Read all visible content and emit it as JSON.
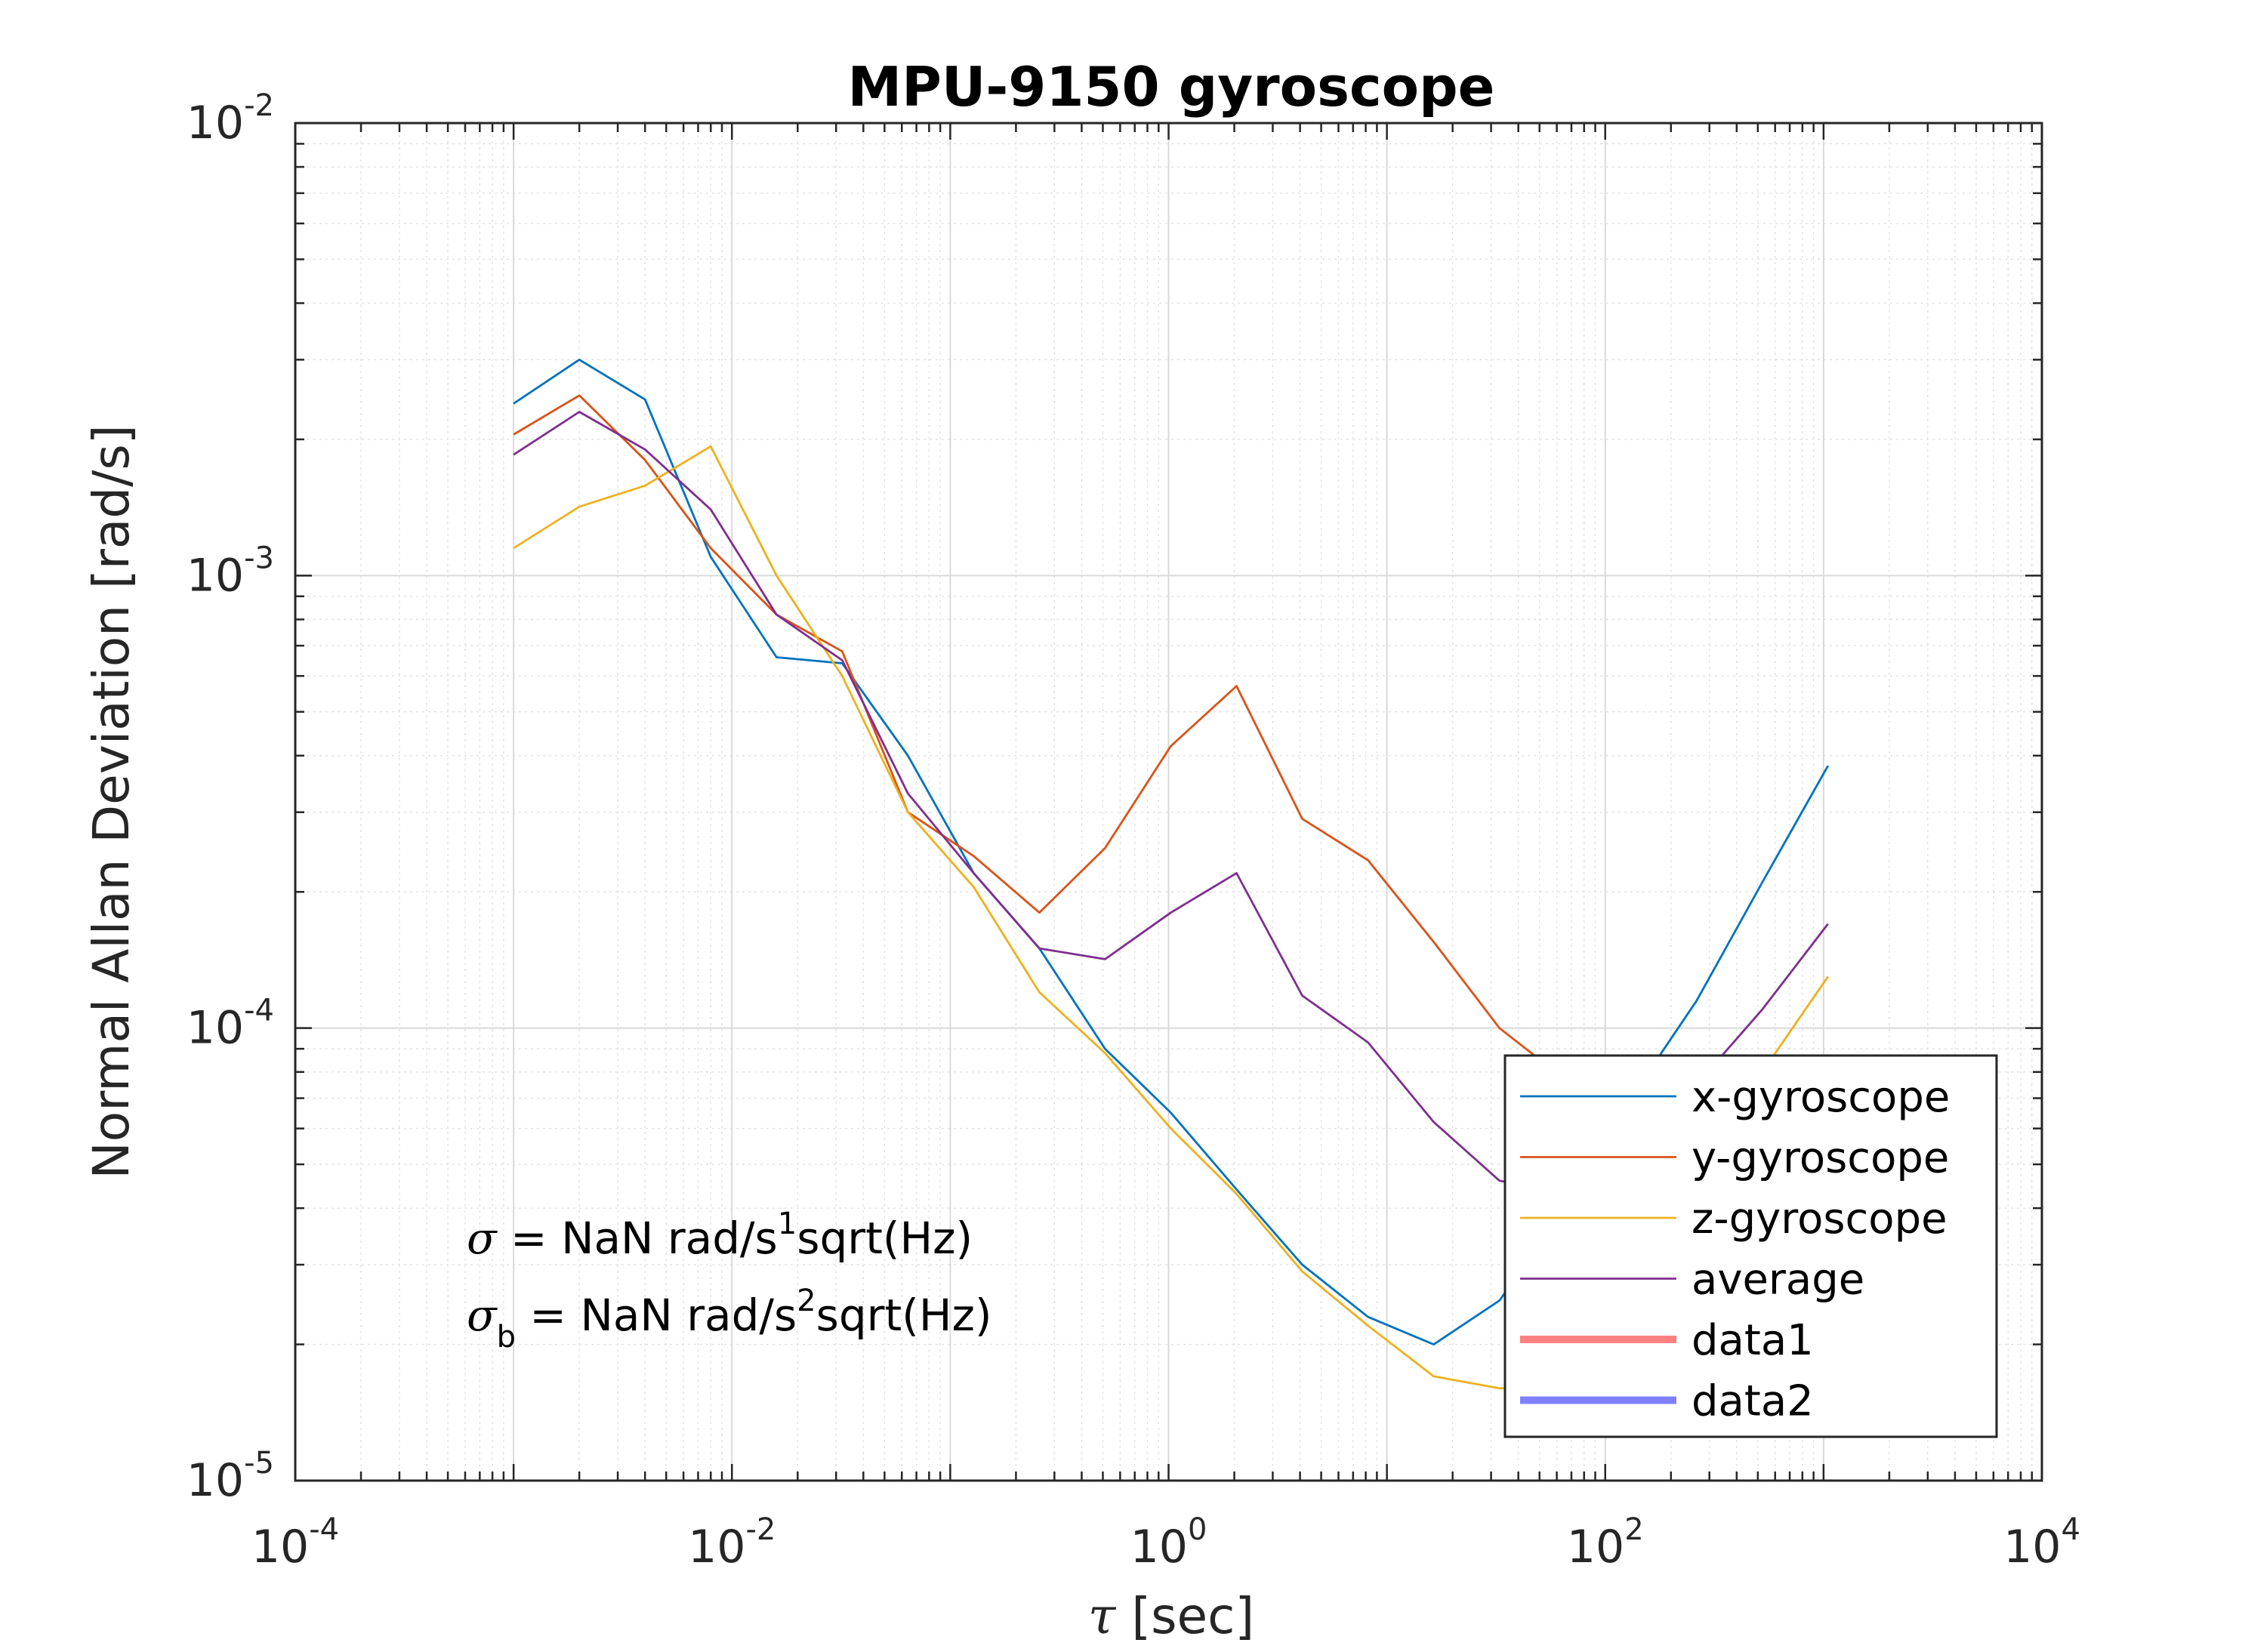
{
  "chart_data": {
    "type": "line",
    "title": "MPU-9150 gyroscope",
    "xlabel_symbol": "τ",
    "xlabel": " [sec]",
    "ylabel": "Normal Allan Deviation [rad/s]",
    "xscale": "log",
    "yscale": "log",
    "xlim": [
      0.0001,
      10000
    ],
    "ylim": [
      1e-05,
      0.01
    ],
    "grid": true,
    "legend_position": "bottom-right",
    "x_ticks": [
      {
        "base": "10",
        "exp": "-4",
        "value": 0.0001
      },
      {
        "base": "10",
        "exp": "-2",
        "value": 0.01
      },
      {
        "base": "10",
        "exp": "0",
        "value": 1
      },
      {
        "base": "10",
        "exp": "2",
        "value": 100
      },
      {
        "base": "10",
        "exp": "4",
        "value": 10000
      }
    ],
    "y_ticks": [
      {
        "base": "10",
        "exp": "-5",
        "value": 1e-05
      },
      {
        "base": "10",
        "exp": "-4",
        "value": 0.0001
      },
      {
        "base": "10",
        "exp": "-3",
        "value": 0.001
      },
      {
        "base": "10",
        "exp": "-2",
        "value": 0.01
      }
    ],
    "x": [
      0.001,
      0.002,
      0.004,
      0.008,
      0.016,
      0.032,
      0.064,
      0.128,
      0.256,
      0.512,
      1.024,
      2.048,
      4.096,
      8.192,
      16.384,
      32.768,
      65.536,
      131.072,
      262.144,
      524.288,
      1048.576
    ],
    "series": [
      {
        "name": "x-gyroscope",
        "color": "#0072BD",
        "values": [
          0.0024,
          0.003,
          0.00245,
          0.0011,
          0.00066,
          0.00064,
          0.0004,
          0.00022,
          0.00015,
          9e-05,
          6.5e-05,
          4.4e-05,
          3e-05,
          2.3e-05,
          2e-05,
          2.5e-05,
          4e-05,
          7e-05,
          0.000115,
          0.00021,
          0.00038
        ]
      },
      {
        "name": "y-gyroscope",
        "color": "#D95319",
        "values": [
          0.00205,
          0.0025,
          0.0018,
          0.00115,
          0.00082,
          0.00068,
          0.0003,
          0.00024,
          0.00018,
          0.00025,
          0.00042,
          0.00057,
          0.00029,
          0.000235,
          0.000155,
          0.0001,
          7.7e-05,
          7e-05,
          6.8e-05,
          7e-05,
          8e-05
        ]
      },
      {
        "name": "z-gyroscope",
        "color": "#EDB120",
        "values": [
          0.00115,
          0.00142,
          0.00158,
          0.00193,
          0.001,
          0.0006,
          0.0003,
          0.000205,
          0.00012,
          8.8e-05,
          6e-05,
          4.3e-05,
          2.9e-05,
          2.2e-05,
          1.7e-05,
          1.6e-05,
          1.6e-05,
          3e-05,
          5.5e-05,
          8e-05,
          0.00013
        ]
      },
      {
        "name": "average",
        "color": "#7E2F8E",
        "values": [
          0.00185,
          0.0023,
          0.0019,
          0.0014,
          0.00082,
          0.00065,
          0.00033,
          0.00022,
          0.00015,
          0.000142,
          0.00018,
          0.00022,
          0.000118,
          9.3e-05,
          6.2e-05,
          4.6e-05,
          4.3e-05,
          5.5e-05,
          7.5e-05,
          0.00011,
          0.00017
        ]
      }
    ],
    "extra_legend_entries": [
      {
        "name": "data1",
        "color": "#FF8080"
      },
      {
        "name": "data2",
        "color": "#8080FF"
      }
    ],
    "annotations": {
      "line1": {
        "symbol": "σ",
        "text_a": " = NaN rad/s",
        "sup": "1",
        "text_b": "sqrt(Hz)"
      },
      "line2": {
        "symbol": "σ",
        "sub": "b",
        "text_a": " = NaN rad/s",
        "sup": "2",
        "text_b": "sqrt(Hz)"
      }
    }
  }
}
